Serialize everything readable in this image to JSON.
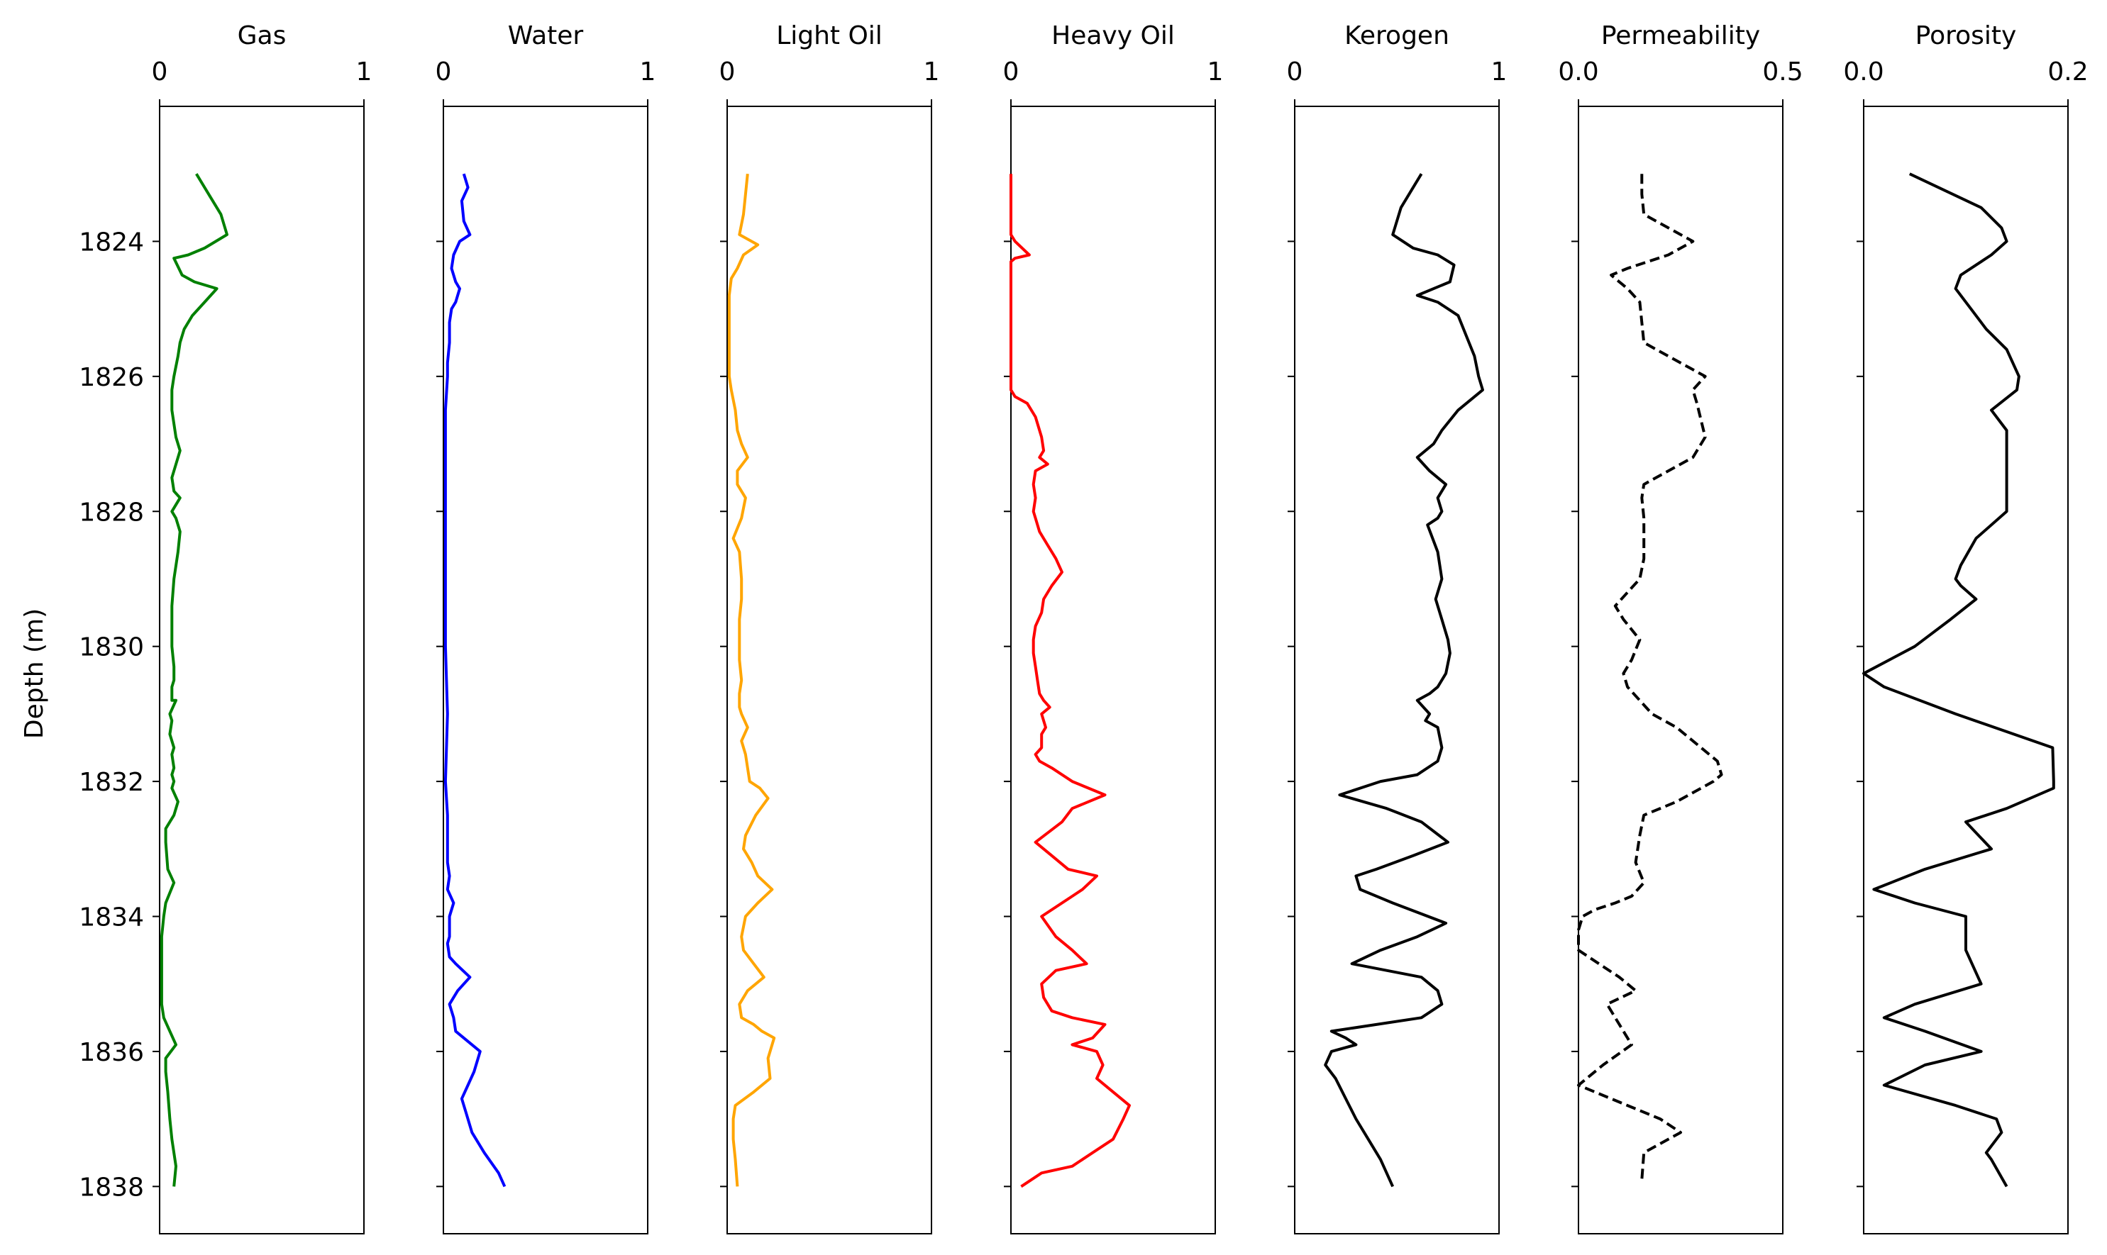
{
  "figure": {
    "ylabel": "Depth (m)",
    "y_ticks": [
      "1824",
      "1826",
      "1828",
      "1830",
      "1832",
      "1834",
      "1836",
      "1838"
    ]
  },
  "chart_data": [
    {
      "type": "line",
      "title": "Gas",
      "xlim": [
        0,
        1
      ],
      "x_ticks": [
        "0",
        "1"
      ],
      "ylim": [
        1838.7,
        1822.0
      ],
      "color": "#008000",
      "linestyle": "solid",
      "series": [
        {
          "x": [
            0.18,
            0.24,
            0.3,
            0.33,
            0.22,
            0.14,
            0.07,
            0.11,
            0.17,
            0.28,
            0.22,
            0.16,
            0.12,
            0.1,
            0.09,
            0.07,
            0.06,
            0.06,
            0.08,
            0.1,
            0.06,
            0.07,
            0.1,
            0.06,
            0.08,
            0.1,
            0.09,
            0.07,
            0.06,
            0.06,
            0.06,
            0.07,
            0.07,
            0.06,
            0.06,
            0.06,
            0.08,
            0.05,
            0.06,
            0.05,
            0.07,
            0.06,
            0.07,
            0.06,
            0.07,
            0.06,
            0.09,
            0.07,
            0.03,
            0.03,
            0.04,
            0.07,
            0.03,
            0.02,
            0.01,
            0.01,
            0.01,
            0.01,
            0.02,
            0.05,
            0.08,
            0.03,
            0.03,
            0.04,
            0.05,
            0.06,
            0.08,
            0.07
          ],
          "y": [
            1823.0,
            1823.3,
            1823.6,
            1823.9,
            1824.1,
            1824.2,
            1824.25,
            1824.5,
            1824.6,
            1824.7,
            1824.9,
            1825.1,
            1825.3,
            1825.5,
            1825.7,
            1826.0,
            1826.2,
            1826.5,
            1826.9,
            1827.1,
            1827.5,
            1827.7,
            1827.8,
            1828.0,
            1828.1,
            1828.3,
            1828.6,
            1829.0,
            1829.4,
            1829.7,
            1830.0,
            1830.3,
            1830.5,
            1830.6,
            1830.7,
            1830.8,
            1830.8,
            1831.0,
            1831.1,
            1831.3,
            1831.5,
            1831.6,
            1831.8,
            1831.9,
            1832.0,
            1832.1,
            1832.3,
            1832.5,
            1832.7,
            1832.9,
            1833.3,
            1833.5,
            1833.8,
            1834.0,
            1834.3,
            1834.6,
            1835.0,
            1835.3,
            1835.5,
            1835.7,
            1835.9,
            1836.1,
            1836.3,
            1836.6,
            1837.0,
            1837.3,
            1837.7,
            1838.0
          ]
        }
      ]
    },
    {
      "type": "line",
      "title": "Water",
      "xlim": [
        0,
        1
      ],
      "x_ticks": [
        "0",
        "1"
      ],
      "ylim": [
        1838.7,
        1822.0
      ],
      "color": "#0000ff",
      "linestyle": "solid",
      "series": [
        {
          "x": [
            0.1,
            0.12,
            0.09,
            0.1,
            0.13,
            0.08,
            0.05,
            0.04,
            0.06,
            0.08,
            0.06,
            0.04,
            0.03,
            0.03,
            0.02,
            0.02,
            0.01,
            0.01,
            0.01,
            0.01,
            0.01,
            0.02,
            0.01,
            0.02,
            0.02,
            0.02,
            0.03,
            0.02,
            0.05,
            0.03,
            0.03,
            0.02,
            0.03,
            0.06,
            0.13,
            0.07,
            0.03,
            0.05,
            0.06,
            0.18,
            0.15,
            0.12,
            0.09,
            0.11,
            0.14,
            0.2,
            0.27,
            0.3
          ],
          "y": [
            1823.0,
            1823.2,
            1823.4,
            1823.7,
            1823.9,
            1824.0,
            1824.2,
            1824.4,
            1824.6,
            1824.7,
            1824.9,
            1825.0,
            1825.2,
            1825.5,
            1825.8,
            1826.0,
            1826.5,
            1827.0,
            1828.0,
            1829.0,
            1830.0,
            1831.0,
            1832.0,
            1832.5,
            1833.0,
            1833.2,
            1833.4,
            1833.6,
            1833.8,
            1834.0,
            1834.3,
            1834.4,
            1834.6,
            1834.7,
            1834.9,
            1835.1,
            1835.3,
            1835.5,
            1835.7,
            1836.0,
            1836.3,
            1836.5,
            1836.7,
            1836.9,
            1837.2,
            1837.5,
            1837.8,
            1838.0
          ]
        }
      ]
    },
    {
      "type": "line",
      "title": "Light Oil",
      "xlim": [
        0,
        1
      ],
      "x_ticks": [
        "0",
        "1"
      ],
      "ylim": [
        1838.7,
        1822.0
      ],
      "color": "#ffa500",
      "linestyle": "solid",
      "series": [
        {
          "x": [
            0.1,
            0.09,
            0.08,
            0.06,
            0.15,
            0.08,
            0.05,
            0.02,
            0.01,
            0.01,
            0.01,
            0.01,
            0.02,
            0.04,
            0.05,
            0.07,
            0.1,
            0.05,
            0.05,
            0.09,
            0.07,
            0.03,
            0.06,
            0.07,
            0.07,
            0.06,
            0.06,
            0.06,
            0.07,
            0.06,
            0.06,
            0.07,
            0.1,
            0.07,
            0.09,
            0.1,
            0.11,
            0.16,
            0.2,
            0.14,
            0.09,
            0.08,
            0.12,
            0.15,
            0.22,
            0.15,
            0.09,
            0.07,
            0.08,
            0.13,
            0.18,
            0.1,
            0.06,
            0.07,
            0.13,
            0.17,
            0.23,
            0.2,
            0.21,
            0.13,
            0.04,
            0.03,
            0.03,
            0.04,
            0.05
          ],
          "y": [
            1823.0,
            1823.3,
            1823.6,
            1823.9,
            1824.05,
            1824.2,
            1824.4,
            1824.55,
            1824.8,
            1825.1,
            1825.5,
            1826.0,
            1826.2,
            1826.5,
            1826.8,
            1827.0,
            1827.2,
            1827.4,
            1827.6,
            1827.8,
            1828.1,
            1828.4,
            1828.6,
            1829.0,
            1829.3,
            1829.6,
            1829.9,
            1830.2,
            1830.5,
            1830.7,
            1830.9,
            1831.0,
            1831.2,
            1831.4,
            1831.6,
            1831.8,
            1832.0,
            1832.1,
            1832.25,
            1832.5,
            1832.8,
            1833.0,
            1833.2,
            1833.4,
            1833.6,
            1833.8,
            1834.0,
            1834.3,
            1834.5,
            1834.7,
            1834.9,
            1835.1,
            1835.3,
            1835.5,
            1835.6,
            1835.7,
            1835.8,
            1836.1,
            1836.4,
            1836.6,
            1836.8,
            1837.0,
            1837.3,
            1837.6,
            1838.0
          ]
        }
      ]
    },
    {
      "type": "line",
      "title": "Heavy Oil",
      "xlim": [
        0,
        1
      ],
      "x_ticks": [
        "0",
        "1"
      ],
      "ylim": [
        1838.7,
        1822.0
      ],
      "color": "#ff0000",
      "linestyle": "solid",
      "series": [
        {
          "x": [
            0.0,
            0.0,
            0.0,
            0.02,
            0.09,
            0.02,
            0.0,
            0.0,
            0.0,
            0.0,
            0.0,
            0.0,
            0.02,
            0.08,
            0.12,
            0.15,
            0.16,
            0.14,
            0.18,
            0.12,
            0.11,
            0.12,
            0.11,
            0.12,
            0.14,
            0.18,
            0.22,
            0.25,
            0.2,
            0.16,
            0.15,
            0.12,
            0.11,
            0.11,
            0.12,
            0.13,
            0.14,
            0.16,
            0.19,
            0.15,
            0.17,
            0.15,
            0.15,
            0.12,
            0.14,
            0.2,
            0.3,
            0.46,
            0.3,
            0.25,
            0.12,
            0.2,
            0.28,
            0.42,
            0.35,
            0.3,
            0.15,
            0.22,
            0.3,
            0.37,
            0.22,
            0.15,
            0.16,
            0.2,
            0.3,
            0.46,
            0.4,
            0.3,
            0.42,
            0.45,
            0.42,
            0.5,
            0.58,
            0.55,
            0.5,
            0.4,
            0.3,
            0.15,
            0.05
          ],
          "y": [
            1823.0,
            1823.5,
            1823.9,
            1824.0,
            1824.2,
            1824.25,
            1824.3,
            1824.8,
            1825.2,
            1825.6,
            1826.0,
            1826.2,
            1826.3,
            1826.4,
            1826.6,
            1826.9,
            1827.1,
            1827.2,
            1827.3,
            1827.4,
            1827.6,
            1827.8,
            1828.0,
            1828.1,
            1828.3,
            1828.5,
            1828.7,
            1828.9,
            1829.1,
            1829.3,
            1829.5,
            1829.7,
            1829.9,
            1830.1,
            1830.3,
            1830.5,
            1830.7,
            1830.8,
            1830.9,
            1831.0,
            1831.2,
            1831.3,
            1831.5,
            1831.6,
            1831.7,
            1831.8,
            1832.0,
            1832.2,
            1832.4,
            1832.6,
            1832.9,
            1833.1,
            1833.3,
            1833.4,
            1833.6,
            1833.7,
            1834.0,
            1834.3,
            1834.5,
            1834.7,
            1834.8,
            1835.0,
            1835.2,
            1835.4,
            1835.5,
            1835.6,
            1835.8,
            1835.9,
            1836.0,
            1836.2,
            1836.4,
            1836.6,
            1836.8,
            1837.0,
            1837.3,
            1837.5,
            1837.7,
            1837.8,
            1838.0
          ]
        }
      ]
    },
    {
      "type": "line",
      "title": "Kerogen",
      "xlim": [
        0,
        1
      ],
      "x_ticks": [
        "0",
        "1"
      ],
      "ylim": [
        1838.7,
        1822.0
      ],
      "color": "#000000",
      "linestyle": "solid",
      "series": [
        {
          "x": [
            0.62,
            0.58,
            0.52,
            0.48,
            0.58,
            0.7,
            0.78,
            0.76,
            0.6,
            0.7,
            0.8,
            0.84,
            0.88,
            0.9,
            0.92,
            0.8,
            0.72,
            0.68,
            0.6,
            0.66,
            0.74,
            0.7,
            0.72,
            0.7,
            0.65,
            0.7,
            0.72,
            0.69,
            0.72,
            0.75,
            0.76,
            0.74,
            0.7,
            0.66,
            0.6,
            0.66,
            0.64,
            0.7,
            0.72,
            0.7,
            0.6,
            0.42,
            0.22,
            0.45,
            0.62,
            0.75,
            0.58,
            0.4,
            0.3,
            0.32,
            0.48,
            0.74,
            0.6,
            0.42,
            0.28,
            0.45,
            0.62,
            0.7,
            0.72,
            0.62,
            0.4,
            0.18,
            0.25,
            0.3,
            0.18,
            0.15,
            0.2,
            0.25,
            0.3,
            0.36,
            0.42,
            0.48
          ],
          "y": [
            1823.0,
            1823.2,
            1823.5,
            1823.9,
            1824.1,
            1824.2,
            1824.35,
            1824.6,
            1824.8,
            1824.9,
            1825.1,
            1825.4,
            1825.7,
            1826.0,
            1826.2,
            1826.5,
            1826.8,
            1827.0,
            1827.2,
            1827.4,
            1827.6,
            1827.8,
            1828.0,
            1828.1,
            1828.2,
            1828.6,
            1829.0,
            1829.3,
            1829.6,
            1829.9,
            1830.1,
            1830.4,
            1830.6,
            1830.7,
            1830.8,
            1831.0,
            1831.1,
            1831.2,
            1831.5,
            1831.7,
            1831.9,
            1832.0,
            1832.2,
            1832.4,
            1832.6,
            1832.9,
            1833.1,
            1833.3,
            1833.4,
            1833.6,
            1833.8,
            1834.1,
            1834.3,
            1834.5,
            1834.7,
            1834.8,
            1834.9,
            1835.1,
            1835.3,
            1835.5,
            1835.6,
            1835.7,
            1835.8,
            1835.9,
            1836.0,
            1836.2,
            1836.4,
            1836.7,
            1837.0,
            1837.3,
            1837.6,
            1838.0
          ]
        }
      ]
    },
    {
      "type": "line",
      "title": "Permeability",
      "xlim": [
        0.0,
        0.5
      ],
      "x_ticks": [
        "0.0",
        "0.5"
      ],
      "ylim": [
        1838.7,
        1822.0
      ],
      "color": "#000000",
      "linestyle": "dashed",
      "series": [
        {
          "x": [
            0.155,
            0.155,
            0.16,
            0.22,
            0.28,
            0.22,
            0.12,
            0.08,
            0.12,
            0.15,
            0.155,
            0.16,
            0.22,
            0.28,
            0.31,
            0.28,
            0.29,
            0.31,
            0.28,
            0.22,
            0.16,
            0.155,
            0.16,
            0.16,
            0.16,
            0.15,
            0.12,
            0.09,
            0.11,
            0.15,
            0.13,
            0.11,
            0.12,
            0.15,
            0.18,
            0.24,
            0.3,
            0.34,
            0.35,
            0.33,
            0.24,
            0.16,
            0.15,
            0.14,
            0.16,
            0.13,
            0.09,
            0.04,
            0.01,
            0.0,
            0.0,
            0.05,
            0.1,
            0.14,
            0.07,
            0.09,
            0.13,
            0.06,
            0.0,
            0.12,
            0.2,
            0.25,
            0.16,
            0.155
          ],
          "y": [
            1823.0,
            1823.3,
            1823.6,
            1823.8,
            1824.0,
            1824.2,
            1824.4,
            1824.5,
            1824.7,
            1824.9,
            1825.2,
            1825.5,
            1825.7,
            1825.9,
            1826.0,
            1826.2,
            1826.4,
            1826.9,
            1827.2,
            1827.4,
            1827.6,
            1827.8,
            1828.1,
            1828.4,
            1828.7,
            1829.0,
            1829.2,
            1829.4,
            1829.6,
            1829.9,
            1830.2,
            1830.4,
            1830.6,
            1830.8,
            1831.0,
            1831.2,
            1831.5,
            1831.7,
            1831.9,
            1832.0,
            1832.3,
            1832.5,
            1832.8,
            1833.2,
            1833.5,
            1833.7,
            1833.8,
            1833.9,
            1834.0,
            1834.2,
            1834.5,
            1834.7,
            1834.9,
            1835.1,
            1835.3,
            1835.5,
            1835.9,
            1836.2,
            1836.5,
            1836.8,
            1837.0,
            1837.2,
            1837.5,
            1837.9
          ]
        }
      ]
    },
    {
      "type": "line",
      "title": "Porosity",
      "xlim": [
        0.0,
        0.2
      ],
      "x_ticks": [
        "0.0",
        "0.2"
      ],
      "ylim": [
        1838.7,
        1822.0
      ],
      "color": "#000000",
      "linestyle": "solid",
      "series": [
        {
          "x": [
            0.045,
            0.115,
            0.135,
            0.14,
            0.125,
            0.095,
            0.09,
            0.105,
            0.12,
            0.14,
            0.152,
            0.15,
            0.125,
            0.14,
            0.14,
            0.14,
            0.11,
            0.095,
            0.09,
            0.095,
            0.11,
            0.085,
            0.05,
            0.0,
            0.02,
            0.09,
            0.185,
            0.186,
            0.186,
            0.14,
            0.1,
            0.125,
            0.06,
            0.01,
            0.05,
            0.1,
            0.1,
            0.115,
            0.05,
            0.02,
            0.06,
            0.115,
            0.06,
            0.02,
            0.09,
            0.13,
            0.135,
            0.12,
            0.125,
            0.14
          ],
          "y": [
            1823.0,
            1823.5,
            1823.8,
            1824.0,
            1824.2,
            1824.5,
            1824.7,
            1825.0,
            1825.3,
            1825.6,
            1826.0,
            1826.2,
            1826.5,
            1826.8,
            1827.5,
            1828.0,
            1828.4,
            1828.8,
            1829.0,
            1829.1,
            1829.3,
            1829.6,
            1830.0,
            1830.4,
            1830.6,
            1831.0,
            1831.5,
            1832.0,
            1832.1,
            1832.4,
            1832.6,
            1833.0,
            1833.3,
            1833.6,
            1833.8,
            1834.0,
            1834.5,
            1835.0,
            1835.3,
            1835.5,
            1835.7,
            1836.0,
            1836.2,
            1836.5,
            1836.8,
            1837.0,
            1837.2,
            1837.5,
            1837.6,
            1838.0
          ]
        }
      ]
    }
  ]
}
